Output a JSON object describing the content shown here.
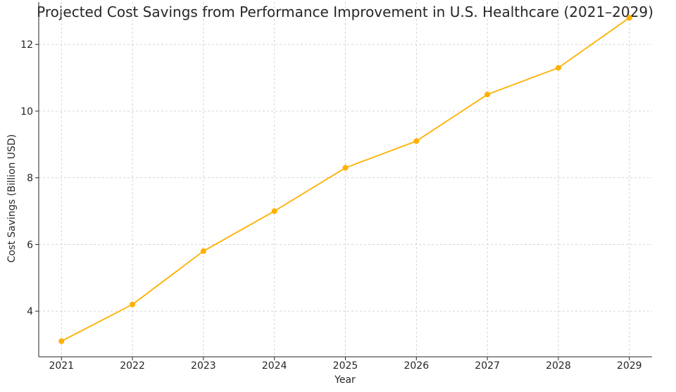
{
  "chart_data": {
    "type": "line",
    "title": "Projected Cost Savings from Performance Improvement in U.S. Healthcare (2021–2029)",
    "xlabel": "Year",
    "ylabel": "Cost Savings (Billion USD)",
    "x": [
      2021,
      2022,
      2023,
      2024,
      2025,
      2026,
      2027,
      2028,
      2029
    ],
    "x_tick_labels": [
      "2021",
      "2022",
      "2023",
      "2024",
      "2025",
      "2026",
      "2027",
      "2028",
      "2029"
    ],
    "y_ticks": [
      4,
      6,
      8,
      10,
      12
    ],
    "y_tick_labels": [
      "4",
      "6",
      "8",
      "10",
      "12"
    ],
    "series": [
      {
        "values": [
          3.1,
          4.2,
          5.8,
          7.0,
          8.3,
          9.1,
          10.5,
          11.3,
          12.8
        ],
        "color": "#FFB000"
      }
    ],
    "ylim": [
      2.63,
      13.27
    ],
    "grid": true,
    "markers": true
  }
}
